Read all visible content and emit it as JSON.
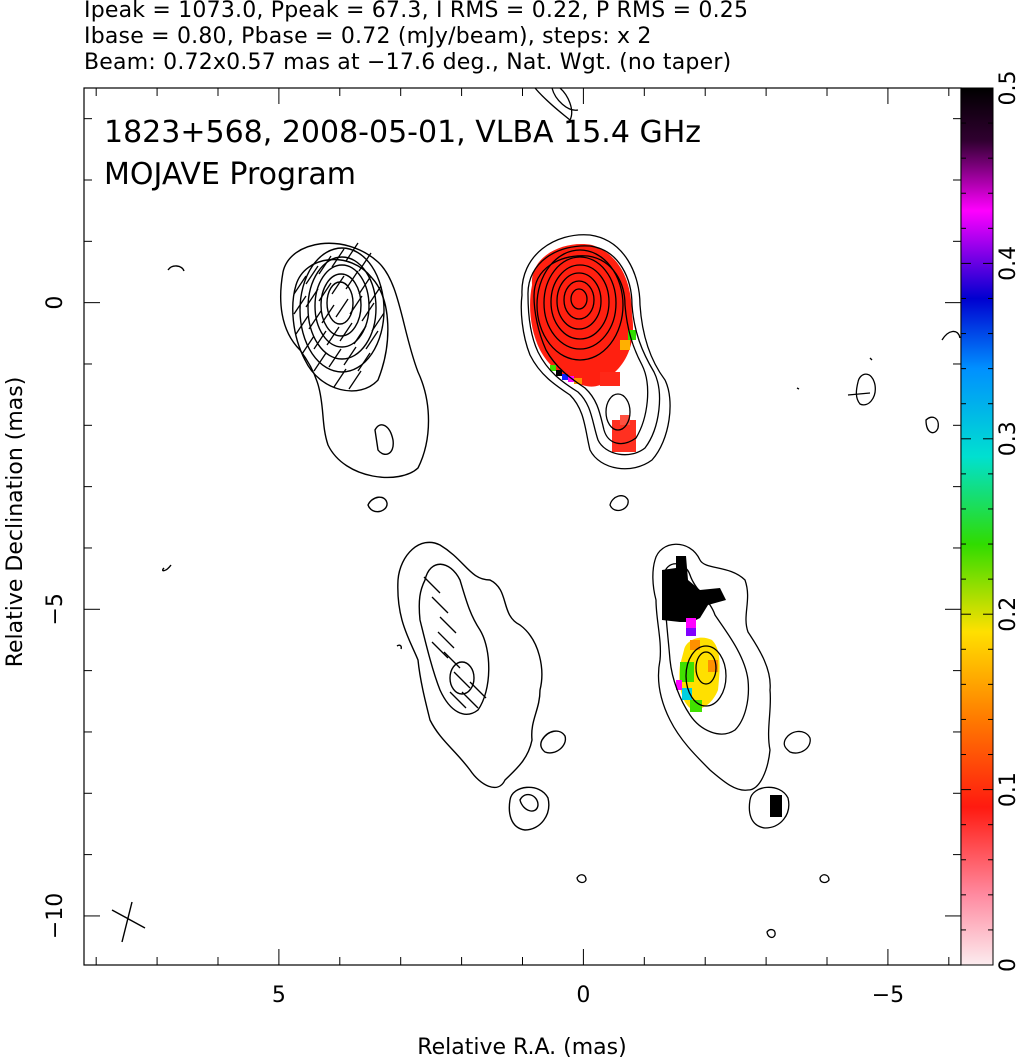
{
  "header": {
    "line1": "Ipeak = 1073.0, Ppeak = 67.3, I RMS = 0.22, P RMS = 0.25",
    "line2": "Ibase = 0.80, Pbase = 0.72 (mJy/beam), steps: x 2",
    "line3": "Beam: 0.72x0.57 mas at −17.6 deg., Nat. Wgt. (no taper)"
  },
  "chart_data": [
    {
      "panel": "left",
      "type": "contour",
      "xlabel": "Relative R.A. (mas)",
      "ylabel": "Relative Declination (mas)",
      "xlim": [
        8.2,
        -6.2
      ],
      "ylim": [
        -10.8,
        3.5
      ],
      "x_ticks": [
        5,
        0,
        -5
      ],
      "y_ticks": [
        0,
        -5,
        -10
      ],
      "x_tick_labels": [
        "5",
        "0",
        "−5"
      ],
      "y_tick_labels": [
        "0",
        "−5",
        "−10"
      ],
      "annotations": [
        "1823+568, 2008-05-01, VLBA 15.4 GHz",
        "MOJAVE Program"
      ],
      "core_position": [
        0,
        0
      ],
      "beam": {
        "major": 0.72,
        "minor": 0.57,
        "pa_deg": -17.6,
        "center": [
          7.7,
          -10.3
        ]
      },
      "jet_component": [
        -2.0,
        -6.2
      ]
    },
    {
      "panel": "colorbar",
      "type": "heatmap",
      "range": [
        0,
        0.5
      ],
      "tick_values": [
        0,
        0.1,
        0.2,
        0.3,
        0.4,
        0.5
      ],
      "tick_labels": [
        "0",
        "0.1",
        "0.2",
        "0.3",
        "0.4",
        "0.5"
      ],
      "colors": [
        "#fbe6ec",
        "#ff1a10",
        "#ff8c00",
        "#ffe800",
        "#32dc00",
        "#00e0e0",
        "#2060ff",
        "#0000cc",
        "#ff00ff",
        "#000000"
      ]
    }
  ]
}
